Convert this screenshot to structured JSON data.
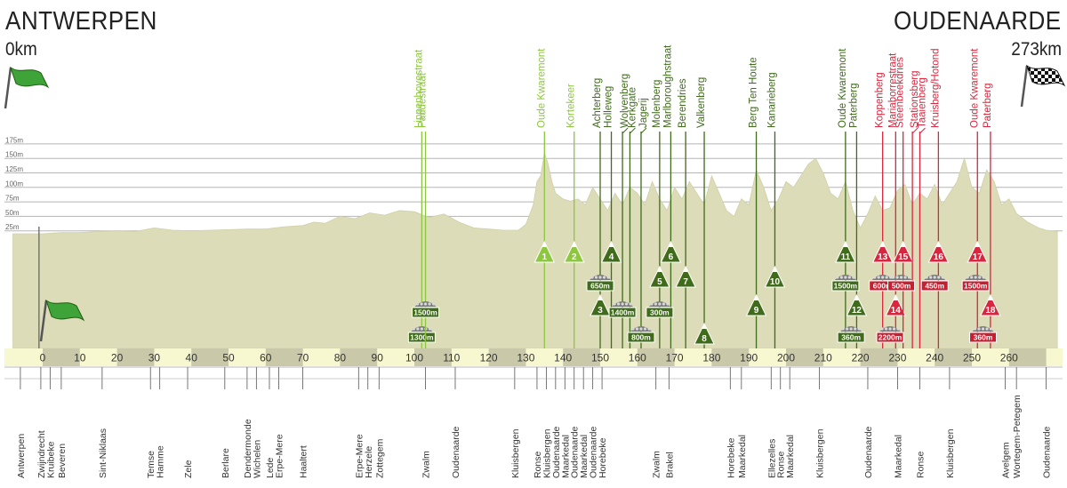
{
  "header": {
    "start_city": "ANTWERPEN",
    "start_distance": "0km",
    "end_city": "OUDENAARDE",
    "end_distance": "273km"
  },
  "chart_data": {
    "type": "area",
    "title": "",
    "xlabel": "",
    "ylabel": "",
    "x_unit": "km",
    "xlim": [
      -8,
      273
    ],
    "ylim": [
      0,
      175
    ],
    "x_ticks": [
      0,
      10,
      20,
      30,
      40,
      50,
      60,
      70,
      80,
      90,
      100,
      110,
      120,
      130,
      140,
      150,
      160,
      170,
      180,
      190,
      200,
      210,
      220,
      230,
      240,
      250,
      260
    ],
    "x_tick_labels": [
      "0",
      "10",
      "20",
      "30",
      "40",
      "50",
      "60",
      "70",
      "80",
      "90",
      "100",
      "110",
      "120",
      "130",
      "140",
      "150",
      "160",
      "170",
      "180",
      "190",
      "200",
      "210",
      "220",
      "230",
      "240",
      "250",
      "260"
    ],
    "y_ticks": [
      25,
      50,
      75,
      100,
      125,
      150,
      175
    ],
    "y_tick_labels": [
      "25m",
      "50m",
      "75m",
      "100m",
      "125m",
      "150m",
      "175m"
    ],
    "profile": {
      "name": "",
      "x": [
        -8,
        0,
        5,
        10,
        15,
        20,
        25,
        30,
        35,
        40,
        45,
        50,
        55,
        60,
        65,
        70,
        73,
        76,
        80,
        84,
        88,
        92,
        96,
        100,
        104,
        108,
        112,
        116,
        120,
        124,
        128,
        130,
        132,
        133,
        134,
        135,
        136,
        137,
        138,
        140,
        142,
        144,
        146,
        148,
        150,
        152,
        154,
        156,
        158,
        160,
        162,
        164,
        166,
        168,
        170,
        172,
        174,
        176,
        178,
        180,
        182,
        184,
        186,
        188,
        190,
        192,
        194,
        196,
        198,
        200,
        202,
        204,
        206,
        208,
        210,
        212,
        214,
        216,
        218,
        220,
        222,
        224,
        226,
        228,
        230,
        232,
        234,
        236,
        238,
        240,
        242,
        244,
        246,
        248,
        250,
        252,
        254,
        256,
        258,
        260,
        262,
        265,
        268,
        270,
        273
      ],
      "y": [
        20,
        20,
        22,
        22,
        24,
        25,
        24,
        30,
        26,
        25,
        26,
        27,
        28,
        28,
        32,
        34,
        40,
        38,
        50,
        46,
        56,
        52,
        60,
        58,
        48,
        54,
        40,
        30,
        28,
        26,
        26,
        36,
        70,
        110,
        120,
        160,
        140,
        110,
        90,
        80,
        76,
        80,
        70,
        100,
        80,
        60,
        90,
        70,
        100,
        90,
        70,
        110,
        80,
        60,
        100,
        80,
        110,
        90,
        70,
        120,
        90,
        60,
        50,
        80,
        70,
        130,
        100,
        60,
        80,
        110,
        100,
        120,
        140,
        150,
        125,
        90,
        80,
        110,
        60,
        30,
        55,
        85,
        60,
        65,
        95,
        105,
        70,
        90,
        80,
        105,
        70,
        90,
        110,
        150,
        100,
        90,
        130,
        110,
        70,
        80,
        55,
        40,
        30,
        26,
        24
      ]
    },
    "cobbled_sectors": [
      {
        "km": 102,
        "name": "Lippenhovestraat",
        "length": "1300m"
      },
      {
        "km": 103,
        "name": "Paddestraat",
        "length": "1500m"
      },
      {
        "km": 150,
        "name": "",
        "length": "650m"
      },
      {
        "km": 156,
        "name": "",
        "length": "1400m"
      },
      {
        "km": 161,
        "name": "",
        "length": "800m"
      },
      {
        "km": 166,
        "name": "",
        "length": "300m"
      },
      {
        "km": 216,
        "name": "",
        "length": "1500m"
      },
      {
        "km": 217.5,
        "name": "",
        "length": "360m"
      },
      {
        "km": 226,
        "name": "",
        "length": "600m"
      },
      {
        "km": 228,
        "name": "",
        "length": "2200m"
      },
      {
        "km": 231,
        "name": "",
        "length": "500m"
      },
      {
        "km": 240,
        "name": "",
        "length": "450m"
      },
      {
        "km": 251,
        "name": "",
        "length": "1500m"
      },
      {
        "km": 253,
        "name": "",
        "length": "360m"
      }
    ],
    "climbs": [
      {
        "num": "1",
        "name": "Oude Kwaremont",
        "km": 135,
        "color": "#8dc63f",
        "row": 1
      },
      {
        "num": "2",
        "name": "Kortekeer",
        "km": 143,
        "color": "#8dc63f",
        "row": 1
      },
      {
        "num": "3",
        "name": "Achterberg",
        "km": 150,
        "color": "#3f6b1a",
        "row": 3
      },
      {
        "num": "4",
        "name": "Holleweg",
        "km": 153,
        "color": "#3f6b1a",
        "row": 1
      },
      {
        "num": "",
        "name": "Wolvenberg",
        "km": 156,
        "color": "#3f6b1a",
        "row": 0
      },
      {
        "num": "",
        "name": "Kerkgate",
        "km": 158,
        "color": "#3f6b1a",
        "row": 0
      },
      {
        "num": "",
        "name": "Jagerij",
        "km": 161,
        "color": "#3f6b1a",
        "row": 0
      },
      {
        "num": "5",
        "name": "Molenberg",
        "km": 166,
        "color": "#3f6b1a",
        "row": 2
      },
      {
        "num": "6",
        "name": "Marlboroughstraat",
        "km": 169,
        "color": "#3f6b1a",
        "row": 1
      },
      {
        "num": "7",
        "name": "Berendries",
        "km": 173,
        "color": "#3f6b1a",
        "row": 2
      },
      {
        "num": "8",
        "name": "Valkenberg",
        "km": 178,
        "color": "#3f6b1a",
        "row": 4
      },
      {
        "num": "9",
        "name": "Berg Ten Houte",
        "km": 192,
        "color": "#3f6b1a",
        "row": 3
      },
      {
        "num": "10",
        "name": "Kanarieberg",
        "km": 197,
        "color": "#3f6b1a",
        "row": 2
      },
      {
        "num": "11",
        "name": "Oude Kwaremont",
        "km": 216,
        "color": "#3f6b1a",
        "row": 1
      },
      {
        "num": "12",
        "name": "Paterberg",
        "km": 219,
        "color": "#3f6b1a",
        "row": 3
      },
      {
        "num": "13",
        "name": "Koppenberg",
        "km": 226,
        "color": "#d7263d",
        "row": 1
      },
      {
        "num": "14",
        "name": "Mariaborrestraat",
        "km": 229.5,
        "color": "#d7263d",
        "row": 3
      },
      {
        "num": "15",
        "name": "Steenbeekdries",
        "km": 231.5,
        "color": "#d7263d",
        "row": 1
      },
      {
        "num": "",
        "name": "Stationsberg",
        "km": 234,
        "color": "#d7263d",
        "row": 0
      },
      {
        "num": "",
        "name": "Taaienberg",
        "km": 236,
        "color": "#d7263d",
        "row": 0
      },
      {
        "num": "16",
        "name": "Kruisberg/Hotond",
        "km": 241,
        "color": "#d7263d",
        "row": 1
      },
      {
        "num": "17",
        "name": "Oude Kwaremont",
        "km": 251.5,
        "color": "#d7263d",
        "row": 1
      },
      {
        "num": "18",
        "name": "Paterberg",
        "km": 255,
        "color": "#d7263d",
        "row": 3
      }
    ],
    "places": [
      {
        "km": -6,
        "name": "Antwerpen"
      },
      {
        "km": -0.5,
        "name": "Zwijndrecht"
      },
      {
        "km": 2,
        "name": "Kruibeke"
      },
      {
        "km": 5,
        "name": "Beveren"
      },
      {
        "km": 16,
        "name": "Sint-Niklaas"
      },
      {
        "km": 29,
        "name": "Temse"
      },
      {
        "km": 31.5,
        "name": "Hamme"
      },
      {
        "km": 39,
        "name": "Zele"
      },
      {
        "km": 49,
        "name": "Berlare"
      },
      {
        "km": 55,
        "name": "Dendermonde"
      },
      {
        "km": 57.5,
        "name": "Wichelen"
      },
      {
        "km": 61,
        "name": "Lede"
      },
      {
        "km": 63.5,
        "name": "Erpe-Mere"
      },
      {
        "km": 70,
        "name": "Haaltert"
      },
      {
        "km": 85,
        "name": "Erpe-Mere"
      },
      {
        "km": 87.5,
        "name": "Herzele"
      },
      {
        "km": 90.5,
        "name": "Zottegem"
      },
      {
        "km": 103,
        "name": "Zwalm"
      },
      {
        "km": 111,
        "name": "Oudenaarde"
      },
      {
        "km": 127,
        "name": "Kluisbergen"
      },
      {
        "km": 133,
        "name": "Ronse"
      },
      {
        "km": 135.5,
        "name": "Kluisbergen"
      },
      {
        "km": 138,
        "name": "Oudenaarde"
      },
      {
        "km": 140.5,
        "name": "Maarkedal"
      },
      {
        "km": 143,
        "name": "Oudenaarde"
      },
      {
        "km": 145.5,
        "name": "Maarkedal"
      },
      {
        "km": 148,
        "name": "Oudenaarde"
      },
      {
        "km": 150.5,
        "name": "Horebeke"
      },
      {
        "km": 165,
        "name": "Zwalm"
      },
      {
        "km": 168.5,
        "name": "Brakel"
      },
      {
        "km": 185,
        "name": "Horebeke"
      },
      {
        "km": 188,
        "name": "Maarkedal"
      },
      {
        "km": 196,
        "name": "Ellezelles"
      },
      {
        "km": 198.5,
        "name": "Ronse"
      },
      {
        "km": 201,
        "name": "Maarkedal"
      },
      {
        "km": 209,
        "name": "Kluisbergen"
      },
      {
        "km": 222,
        "name": "Oudenaarde"
      },
      {
        "km": 230,
        "name": "Maarkedal"
      },
      {
        "km": 236,
        "name": "Ronse"
      },
      {
        "km": 244,
        "name": "Kluisbergen"
      },
      {
        "km": 259,
        "name": "Avelgem"
      },
      {
        "km": 262,
        "name": "Wortegem-Petegem"
      },
      {
        "km": 270,
        "name": "Oudenaarde"
      }
    ]
  }
}
